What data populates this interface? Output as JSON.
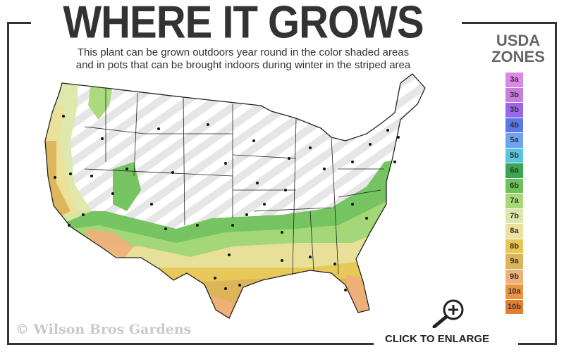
{
  "header": {
    "title": "WHERE IT GROWS",
    "subtitle_line1": "This plant can be grown outdoors year round in the color shaded areas",
    "subtitle_line2": "and in pots that can be brought indoors during winter in the striped area"
  },
  "legend": {
    "title_line1": "USDA",
    "title_line2": "ZONES",
    "zones": [
      {
        "label": "3a",
        "color": "#dd88e6"
      },
      {
        "label": "3b",
        "color": "#c77fd9"
      },
      {
        "label": "3b",
        "color": "#9a66ea"
      },
      {
        "label": "4b",
        "color": "#5a78e6"
      },
      {
        "label": "5a",
        "color": "#6fa3f2"
      },
      {
        "label": "5b",
        "color": "#5ac6de"
      },
      {
        "label": "6a",
        "color": "#3aa552"
      },
      {
        "label": "6b",
        "color": "#6fc25a"
      },
      {
        "label": "7a",
        "color": "#a6d878"
      },
      {
        "label": "7b",
        "color": "#dbe8a9"
      },
      {
        "label": "8a",
        "color": "#ece09a"
      },
      {
        "label": "8b",
        "color": "#e8c654"
      },
      {
        "label": "9a",
        "color": "#dcb45a"
      },
      {
        "label": "9b",
        "color": "#efb07a"
      },
      {
        "label": "10a",
        "color": "#ea9440"
      },
      {
        "label": "10b",
        "color": "#e27d34"
      }
    ]
  },
  "map": {
    "watermark": "© Wilson Bros Gardens",
    "enlarge_label": "CLICK TO ENLARGE",
    "enlarge_icon": "zoom-in-magnifier-icon",
    "stripe_colors": [
      "#ffffff",
      "#e6e6e6"
    ]
  }
}
